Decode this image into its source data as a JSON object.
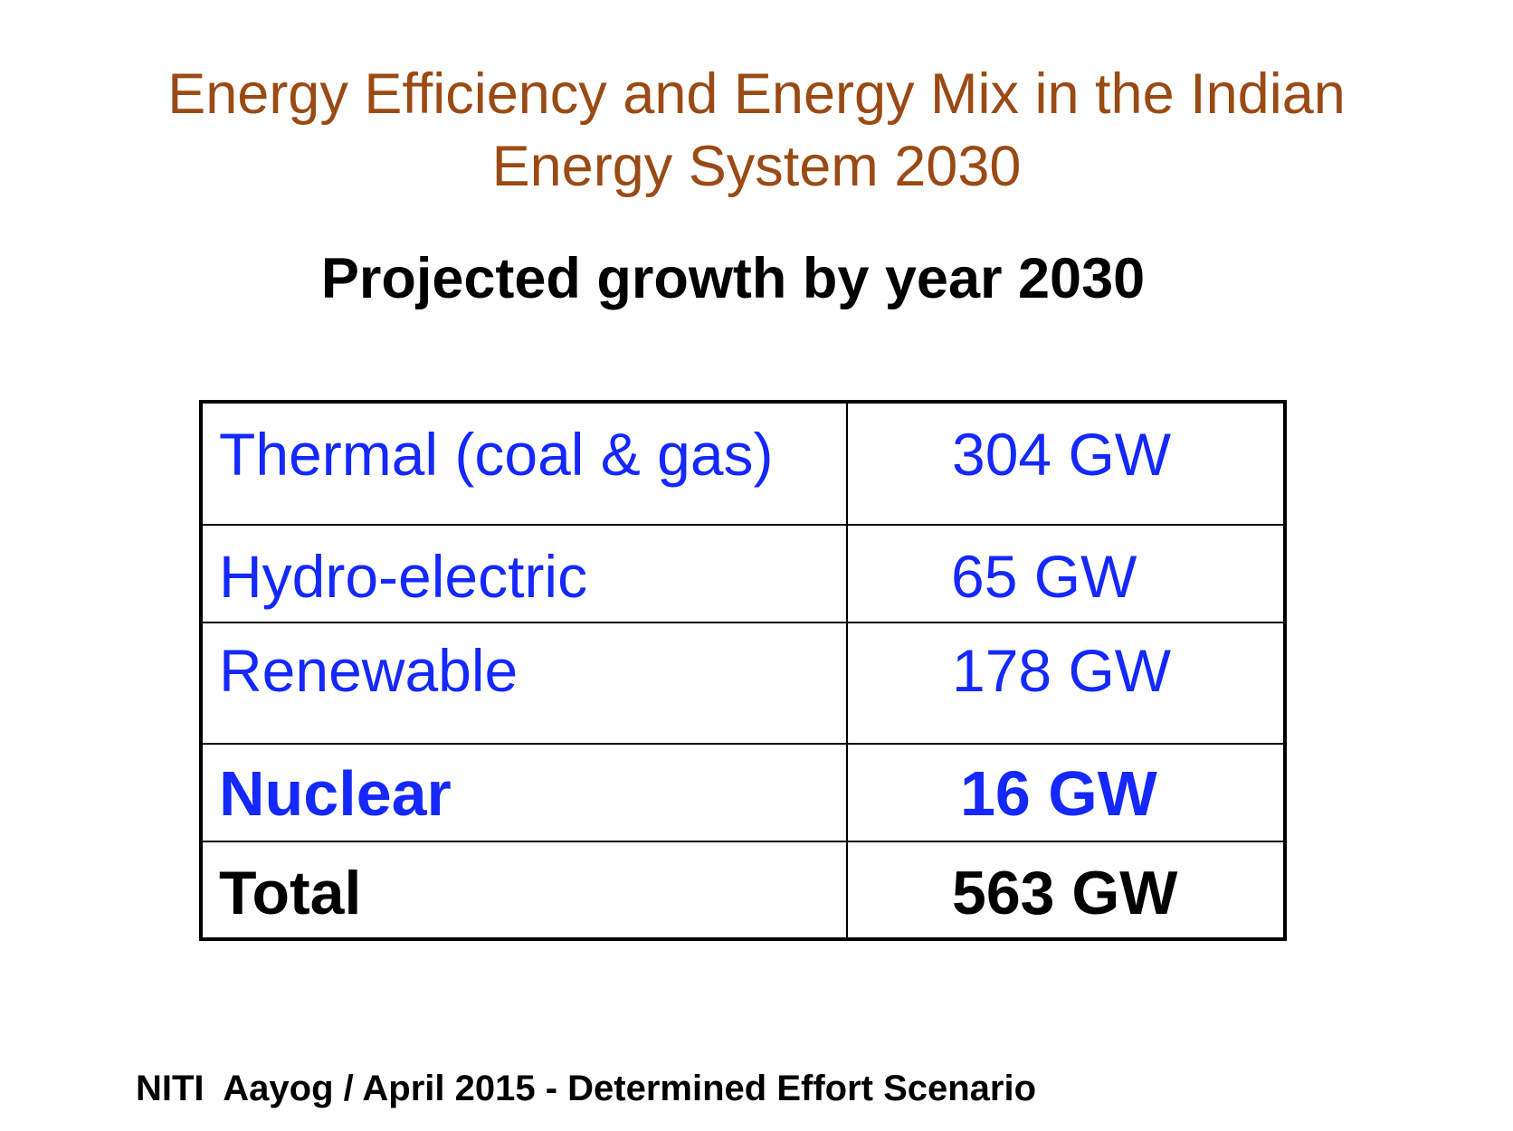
{
  "title": {
    "line1": "Energy Efficiency and Energy Mix in the Indian",
    "line2": "Energy System 2030"
  },
  "subtitle": "Projected growth by year 2030",
  "table": {
    "rows": [
      {
        "source": "Thermal (coal & gas)",
        "capacity": "304 GW"
      },
      {
        "source": "Hydro-electric",
        "capacity": "65 GW"
      },
      {
        "source": "Renewable",
        "capacity": "178 GW"
      },
      {
        "source": "Nuclear",
        "capacity": "16 GW"
      }
    ],
    "total": {
      "label": "Total",
      "capacity": "563 GW"
    }
  },
  "footer": "NITI  Aayog / April 2015 - Determined Effort Scenario",
  "colors": {
    "title": "#9a4a14",
    "table_text": "#1428ff",
    "total_text": "#000000"
  }
}
